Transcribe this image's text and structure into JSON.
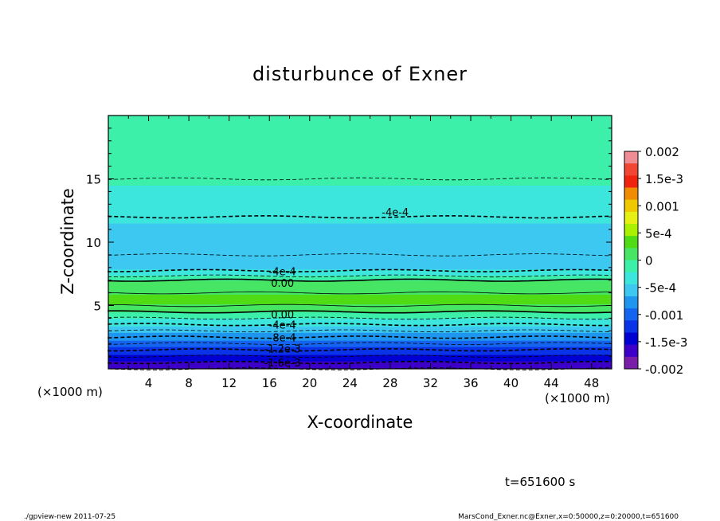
{
  "chart_data": {
    "type": "heatmap",
    "title": "disturbunce of Exner",
    "xlabel": "X-coordinate",
    "ylabel": "Z-coordinate",
    "x_unit": "(×1000 m)",
    "z_unit": "(×1000 m)",
    "xlim": [
      0,
      50
    ],
    "ylim": [
      0,
      20
    ],
    "x_ticks": [
      4,
      8,
      12,
      16,
      20,
      24,
      28,
      32,
      36,
      40,
      44,
      48
    ],
    "x_tick_labels": [
      "4",
      "8",
      "12",
      "16",
      "20",
      "24",
      "28",
      "32",
      "36",
      "40",
      "44",
      "48"
    ],
    "y_ticks": [
      5,
      10,
      15
    ],
    "y_tick_labels": [
      "5",
      "10",
      "15"
    ],
    "profile_z": [
      0,
      0.5,
      1.0,
      1.5,
      2.0,
      2.5,
      3.0,
      3.5,
      4.0,
      4.5,
      5.0,
      5.5,
      6.0,
      6.5,
      7.0,
      7.5,
      8.0,
      9.0,
      10.0,
      11.0,
      12.0,
      12.5,
      13.0,
      14.0,
      15.0,
      16.0,
      17.0,
      18.0,
      19.0,
      20.0
    ],
    "profile_value": [
      -0.0018,
      -0.0016,
      -0.0014,
      -0.0012,
      -0.001,
      -0.0008,
      -0.0006,
      -0.0004,
      -0.0002,
      0.0,
      0.0002,
      0.0003,
      0.0002,
      0.0001,
      0.0,
      -0.0003,
      -0.0005,
      -0.0006,
      -0.00055,
      -0.00048,
      -0.0004,
      -0.00036,
      -0.0003,
      -0.00024,
      -0.0002,
      -0.00018,
      -0.00016,
      -0.00012,
      -0.00014,
      -0.00016
    ],
    "contour_labels": [
      {
        "text": "-4e-4",
        "x": 28.5,
        "z": 12.4
      },
      {
        "text": "-4e-4",
        "x": 17.3,
        "z": 7.7
      },
      {
        "text": "0.00",
        "x": 17.3,
        "z": 6.8
      },
      {
        "text": "0.00",
        "x": 17.3,
        "z": 4.3
      },
      {
        "text": "-4e-4",
        "x": 17.3,
        "z": 3.5
      },
      {
        "text": "-8e-4",
        "x": 17.3,
        "z": 2.5
      },
      {
        "text": "-1.2e-3",
        "x": 17.3,
        "z": 1.6
      },
      {
        "text": "-1.6e-3",
        "x": 17.3,
        "z": 0.5
      }
    ],
    "colorbar": {
      "min": -0.002,
      "max": 0.002,
      "tick_values": [
        0.002,
        0.0015,
        0.001,
        0.0005,
        0,
        -0.0005,
        -0.001,
        -0.0015,
        -0.002
      ],
      "tick_labels": [
        "0.002",
        "1.5e-3",
        "0.001",
        "5e-4",
        "0",
        "-5e-4",
        "-0.001",
        "-1.5e-3",
        "-0.002"
      ],
      "colors": [
        "#f08c94",
        "#f04632",
        "#f0240e",
        "#f08c00",
        "#f0c800",
        "#e6f014",
        "#aaf000",
        "#50dc14",
        "#46e664",
        "#3cf0aa",
        "#3ce6dc",
        "#3cc8f0",
        "#1e96f0",
        "#1464f0",
        "#0a32e6",
        "#0000d2",
        "#3c00c8",
        "#7a1eaa"
      ]
    },
    "time_label": "t=651600 s"
  },
  "footer": {
    "left": "./gpview-new   2011-07-25",
    "right": "MarsCond_Exner.nc@Exner,x=0:50000,z=0:20000,t=651600"
  }
}
